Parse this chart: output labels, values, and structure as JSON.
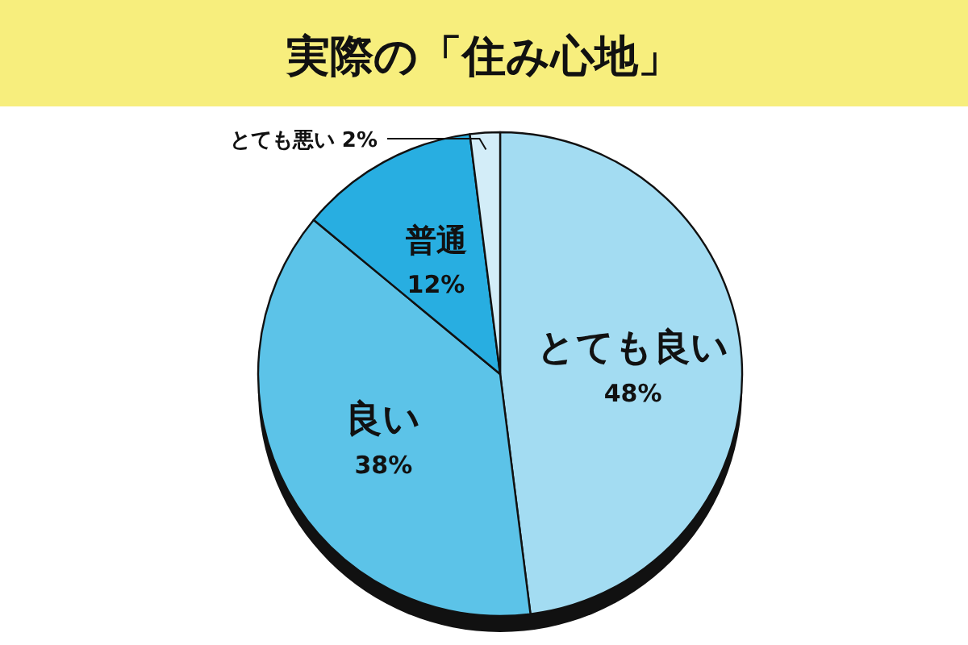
{
  "chart_data": {
    "type": "pie",
    "title": "実際の「住み心地」",
    "categories": [
      "とても良い",
      "良い",
      "普通",
      "とても悪い"
    ],
    "values": [
      48,
      38,
      12,
      2
    ],
    "value_labels": [
      "48%",
      "38%",
      "12%",
      "2%"
    ],
    "colors": [
      "#a3dcf2",
      "#5cc3e8",
      "#28aee1",
      "#d3edf8"
    ]
  }
}
